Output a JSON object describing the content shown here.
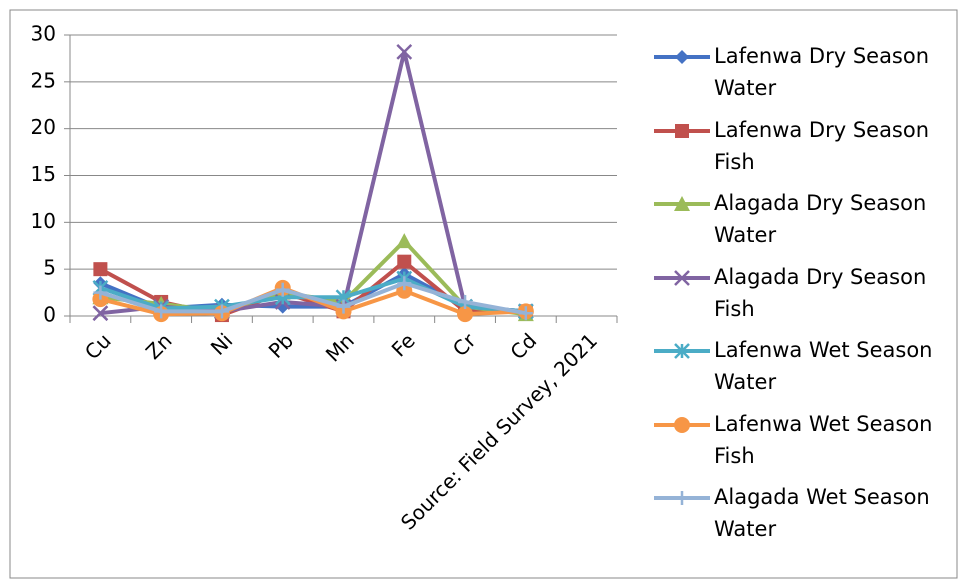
{
  "chart_data": {
    "type": "line",
    "categories": [
      "Cu",
      "Zn",
      "Ni",
      "Pb",
      "Mn",
      "Fe",
      "Cr",
      "Cd",
      "Source: Field Survey, 2021"
    ],
    "series": [
      {
        "name": "Lafenwa Dry Season Water",
        "color": "#4472c4",
        "marker": "diamond",
        "values": [
          3.5,
          0.8,
          1.2,
          1.0,
          1.0,
          4.5,
          1.0,
          0.5,
          null
        ]
      },
      {
        "name": "Lafenwa Dry Season Fish",
        "color": "#c0504d",
        "marker": "square",
        "values": [
          5.0,
          1.5,
          0.1,
          2.5,
          0.5,
          5.8,
          0.5,
          0.5,
          null
        ]
      },
      {
        "name": "Alagada Dry Season Water",
        "color": "#9bbb59",
        "marker": "triangle",
        "values": [
          2.0,
          1.3,
          0.5,
          2.5,
          1.5,
          8.0,
          1.0,
          0.2,
          null
        ]
      },
      {
        "name": "Alagada Dry Season Fish",
        "color": "#8064a2",
        "marker": "x",
        "values": [
          0.3,
          1.0,
          0.5,
          1.5,
          1.0,
          28.2,
          1.0,
          0.5,
          null
        ]
      },
      {
        "name": "Lafenwa Wet Season Water",
        "color": "#4bacc6",
        "marker": "star",
        "values": [
          3.0,
          0.8,
          1.0,
          2.0,
          2.0,
          4.0,
          1.0,
          0.5,
          null
        ]
      },
      {
        "name": "Lafenwa Wet Season Fish",
        "color": "#f79646",
        "marker": "circle",
        "values": [
          1.8,
          0.2,
          0.3,
          3.0,
          0.5,
          2.7,
          0.2,
          0.5,
          null
        ]
      },
      {
        "name": "Alagada Wet Season Water",
        "color": "#95b3d7",
        "marker": "plus",
        "values": [
          2.5,
          0.5,
          0.5,
          2.8,
          1.0,
          3.5,
          1.5,
          0.3,
          null
        ]
      }
    ],
    "ylim": [
      0,
      30
    ],
    "yticks": [
      0,
      5,
      10,
      15,
      20,
      25,
      30
    ],
    "grid": true,
    "legend": "right"
  }
}
